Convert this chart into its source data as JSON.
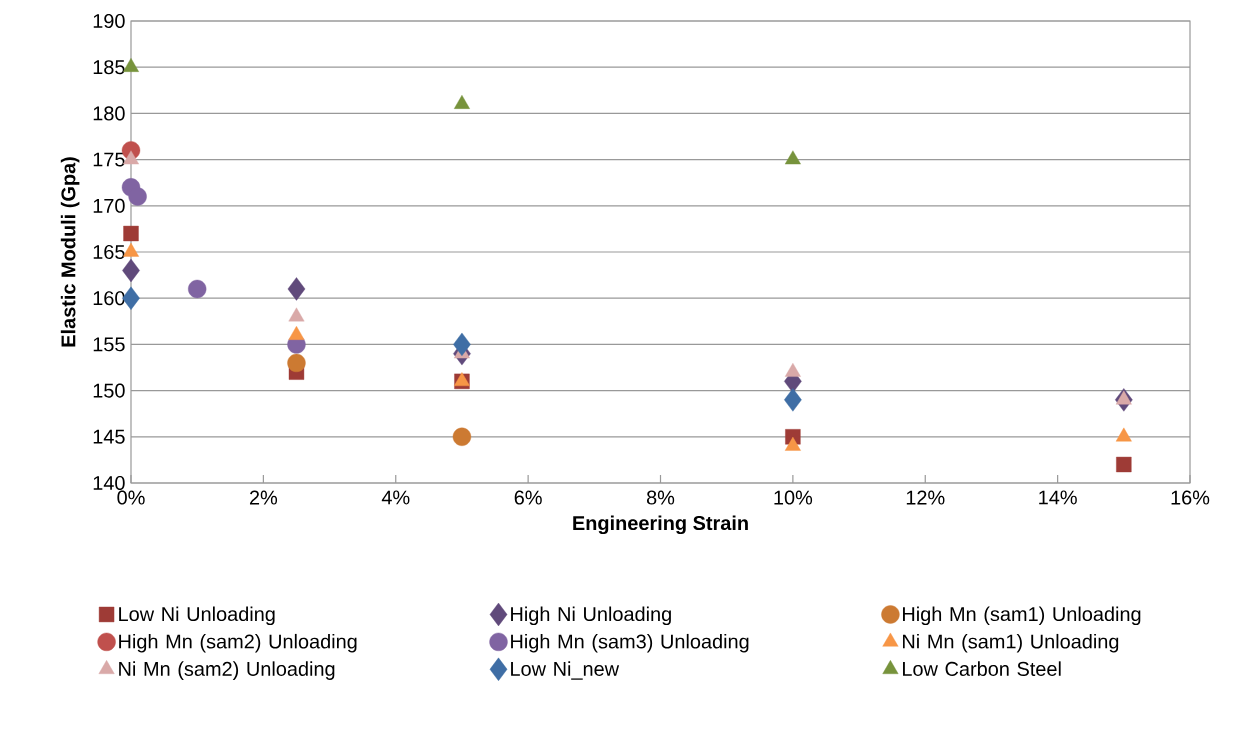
{
  "chart_data": {
    "type": "scatter",
    "xlabel": "Engineering Strain",
    "ylabel": "Elastic Moduli (Gpa)",
    "xlim": [
      0,
      16
    ],
    "ylim": [
      140,
      190
    ],
    "xticks": [
      {
        "value": 0,
        "label": "0%"
      },
      {
        "value": 2,
        "label": "2%"
      },
      {
        "value": 4,
        "label": "4%"
      },
      {
        "value": 6,
        "label": "6%"
      },
      {
        "value": 8,
        "label": "8%"
      },
      {
        "value": 10,
        "label": "10%"
      },
      {
        "value": 12,
        "label": "12%"
      },
      {
        "value": 14,
        "label": "14%"
      },
      {
        "value": 16,
        "label": "16%"
      }
    ],
    "yticks": [
      140,
      145,
      150,
      155,
      160,
      165,
      170,
      175,
      180,
      185,
      190
    ],
    "grid": "y",
    "legend": "bottom",
    "series": [
      {
        "name": "Low Ni Unloading",
        "color": "#9e3b36",
        "marker": "square",
        "x": [
          0,
          2.5,
          5,
          10,
          15
        ],
        "values": [
          167,
          152,
          151,
          145,
          142
        ]
      },
      {
        "name": "High Ni Unloading",
        "color": "#604a7b",
        "marker": "diamond",
        "x": [
          0,
          2.5,
          5,
          10,
          15
        ],
        "values": [
          163,
          161,
          154,
          151,
          149
        ]
      },
      {
        "name": "High Mn (sam1) Unloading",
        "color": "#cc7a32",
        "marker": "circle",
        "x": [
          2.5,
          5
        ],
        "values": [
          153,
          145
        ]
      },
      {
        "name": "High Mn (sam2) Unloading",
        "color": "#c0504d",
        "marker": "circle",
        "x": [
          0
        ],
        "values": [
          176
        ]
      },
      {
        "name": "High Mn (sam3) Unloading",
        "color": "#8064a2",
        "marker": "circle",
        "x": [
          0,
          0.1,
          1,
          2.5
        ],
        "values": [
          172,
          171,
          161,
          155
        ]
      },
      {
        "name": "Ni Mn (sam1) Unloading",
        "color": "#f79646",
        "marker": "triangle",
        "x": [
          0,
          2.5,
          5,
          10,
          15
        ],
        "values": [
          165,
          156,
          151,
          144,
          145
        ]
      },
      {
        "name": "Ni Mn (sam2) Unloading",
        "color": "#d9a9a8",
        "marker": "triangle",
        "x": [
          0,
          2.5,
          5,
          10,
          15
        ],
        "values": [
          175,
          158,
          154,
          152,
          149
        ]
      },
      {
        "name": "Low Ni_new",
        "color": "#3f6ea5",
        "marker": "diamond",
        "x": [
          0,
          5,
          10
        ],
        "values": [
          160,
          155,
          149
        ]
      },
      {
        "name": "Low Carbon Steel",
        "color": "#77933c",
        "marker": "triangle",
        "x": [
          0,
          5,
          10
        ],
        "values": [
          185,
          181,
          175
        ]
      }
    ]
  }
}
